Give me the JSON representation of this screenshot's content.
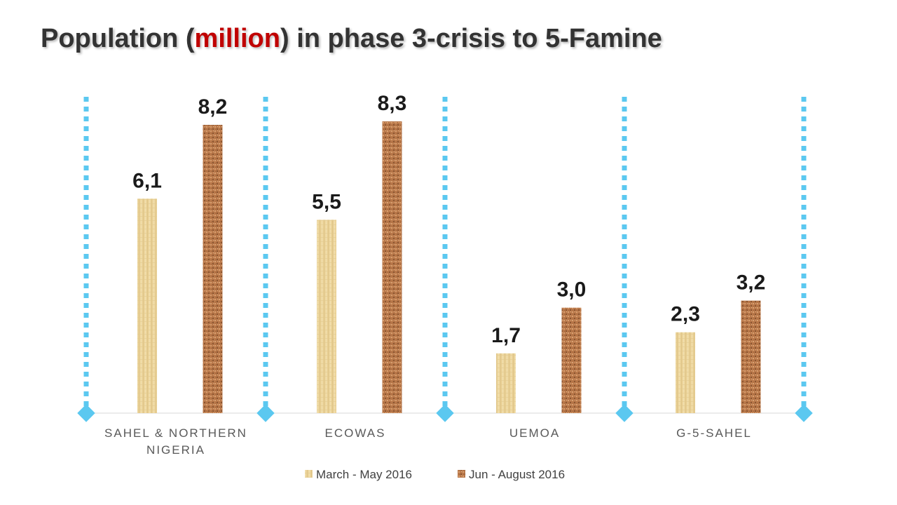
{
  "slide": {
    "title_before": "Population (",
    "title_highlight": "million",
    "title_after": ") in phase 3-crisis to 5-Famine",
    "title_color": "#333333",
    "highlight_color": "#c00000"
  },
  "chart_data": {
    "type": "bar",
    "title": "Population (million) in phase 3-crisis to 5-Famine",
    "categories": [
      [
        "SAHEL & NORTHERN",
        "NIGERIA"
      ],
      [
        "ECOWAS"
      ],
      [
        "UEMOA"
      ],
      [
        "G-5-SAHEL"
      ]
    ],
    "series": [
      {
        "name": "March - May 2016",
        "values": [
          6.1,
          5.5,
          1.7,
          2.3
        ],
        "labels": [
          "6,1",
          "5,5",
          "1,7",
          "2,3"
        ],
        "color": "#ecd49a"
      },
      {
        "name": "Jun - August 2016",
        "values": [
          8.2,
          8.3,
          3.0,
          3.2
        ],
        "labels": [
          "8,2",
          "8,3",
          "3,0",
          "3,2"
        ],
        "color": "#b9784a"
      }
    ],
    "ylim": [
      0,
      8.5
    ],
    "xlabel": "",
    "ylabel": "",
    "grid": false,
    "legend": "bottom",
    "separator_color": "#5bc8f0"
  }
}
